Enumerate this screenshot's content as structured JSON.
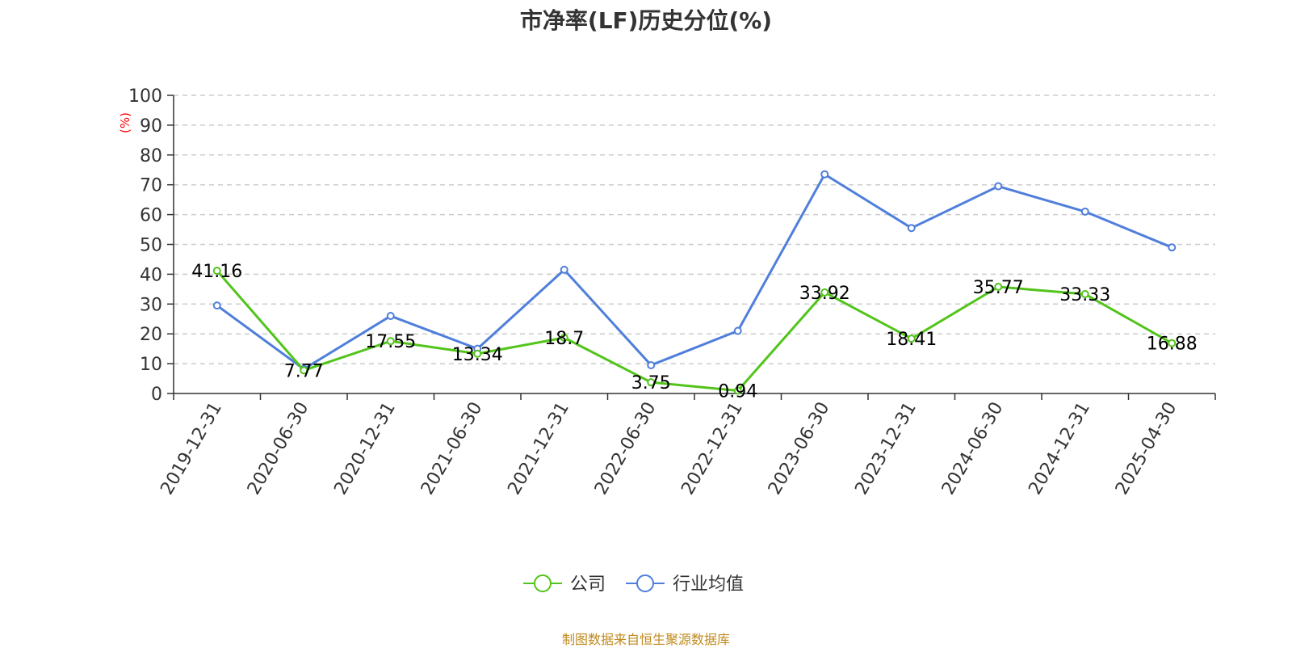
{
  "chart_data": {
    "type": "line",
    "title": "市净率(LF)历史分位(%)",
    "ylabel": "(%)",
    "xlabel": "",
    "ylim": [
      0,
      100
    ],
    "yticks": [
      0,
      10,
      20,
      30,
      40,
      50,
      60,
      70,
      80,
      90,
      100
    ],
    "grid": true,
    "legend_position": "bottom-center",
    "categories": [
      "2019-12-31",
      "2020-06-30",
      "2020-12-31",
      "2021-06-30",
      "2021-12-31",
      "2022-06-30",
      "2022-12-31",
      "2023-06-30",
      "2023-12-31",
      "2024-06-30",
      "2024-12-31",
      "2025-04-30"
    ],
    "series": [
      {
        "name": "公司",
        "color": "#52c41a",
        "values": [
          41.16,
          7.77,
          17.55,
          13.34,
          18.7,
          3.75,
          0.94,
          33.92,
          18.41,
          35.77,
          33.33,
          16.88
        ],
        "data_labels": [
          "41.16",
          "7.77",
          "17.55",
          "13.34",
          "18.7",
          "3.75",
          "0.94",
          "33.92",
          "18.41",
          "35.77",
          "33.33",
          "16.88"
        ]
      },
      {
        "name": "行业均值",
        "color": "#4f7fdb",
        "values": [
          29.5,
          8.2,
          26.0,
          15.0,
          41.5,
          9.5,
          21.0,
          73.5,
          55.5,
          69.5,
          61.0,
          49.0
        ]
      }
    ]
  },
  "source": "制图数据来自恒生聚源数据库"
}
